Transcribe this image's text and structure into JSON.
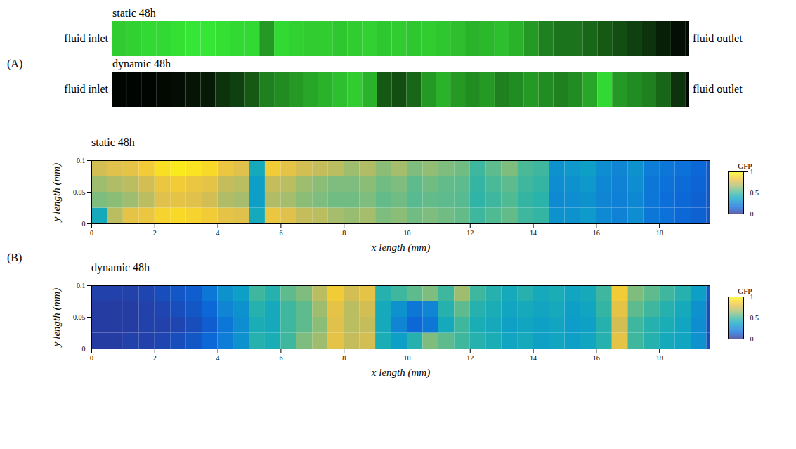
{
  "panels": {
    "A": "(A)",
    "B": "(B)"
  },
  "images": [
    {
      "title": "static 48h",
      "inlet": "fluid inlet",
      "outlet": "fluid outlet",
      "intensity_range": [
        0,
        1
      ],
      "x_edges": [
        0,
        0.5,
        1,
        1.5,
        2,
        2.5,
        3,
        3.5,
        4,
        4.5,
        5,
        5.5,
        6,
        6.5,
        7,
        7.5,
        8,
        8.5,
        9,
        9.5,
        10,
        10.5,
        11,
        11.5,
        12,
        12.5,
        13,
        13.5,
        14,
        14.5,
        15,
        15.5,
        16,
        16.5,
        17,
        17.5,
        18,
        18.5,
        19,
        19.5,
        19.6
      ],
      "intensity": [
        0.8,
        0.82,
        0.85,
        0.85,
        0.88,
        0.9,
        0.9,
        0.88,
        0.85,
        0.85,
        0.6,
        0.85,
        0.82,
        0.8,
        0.8,
        0.78,
        0.8,
        0.82,
        0.78,
        0.8,
        0.78,
        0.8,
        0.78,
        0.75,
        0.7,
        0.72,
        0.75,
        0.7,
        0.6,
        0.5,
        0.45,
        0.45,
        0.4,
        0.35,
        0.3,
        0.25,
        0.2,
        0.12,
        0.06,
        0.03
      ]
    },
    {
      "title": "dynamic 48h",
      "inlet": "fluid inlet",
      "outlet": "fluid outlet",
      "intensity_range": [
        0,
        1
      ],
      "x_edges": [
        0,
        0.5,
        1,
        1.5,
        2,
        2.5,
        3,
        3.5,
        4,
        4.5,
        5,
        5.5,
        6,
        6.5,
        7,
        7.5,
        8,
        8.5,
        9,
        9.5,
        10,
        10.5,
        11,
        11.5,
        12,
        12.5,
        13,
        13.5,
        14,
        14.5,
        15,
        15.5,
        16,
        16.5,
        17,
        17.5,
        18,
        18.5,
        19,
        19.5,
        19.6
      ],
      "intensity": [
        0.02,
        0.02,
        0.02,
        0.03,
        0.05,
        0.08,
        0.1,
        0.2,
        0.25,
        0.35,
        0.5,
        0.55,
        0.6,
        0.65,
        0.7,
        0.75,
        0.8,
        0.7,
        0.35,
        0.3,
        0.4,
        0.6,
        0.7,
        0.6,
        0.55,
        0.6,
        0.5,
        0.55,
        0.6,
        0.55,
        0.5,
        0.55,
        0.65,
        0.85,
        0.6,
        0.55,
        0.5,
        0.4,
        0.2,
        0.03
      ]
    }
  ],
  "chart_data": [
    {
      "type": "heatmap",
      "title": "static 48h",
      "x_label": "x length (mm)",
      "y_label": "y length (mm)",
      "xlim": [
        0,
        19.6
      ],
      "xticks": [
        0,
        2,
        4,
        6,
        8,
        10,
        12,
        14,
        16,
        18
      ],
      "ylim": [
        0,
        0.1
      ],
      "yticks": [
        0,
        0.05,
        0.1
      ],
      "x_edges": [
        0,
        0.5,
        1,
        1.5,
        2,
        2.5,
        3,
        3.5,
        4,
        4.5,
        5,
        5.5,
        6,
        6.5,
        7,
        7.5,
        8,
        8.5,
        9,
        9.5,
        10,
        10.5,
        11,
        11.5,
        12,
        12.5,
        13,
        13.5,
        14,
        14.5,
        15,
        15.5,
        16,
        16.5,
        17,
        17.5,
        18,
        18.5,
        19,
        19.5,
        19.6
      ],
      "y_edges": [
        0,
        0.025,
        0.05,
        0.075,
        0.1
      ],
      "cells": [
        [
          0.4,
          0.7,
          0.8,
          0.82,
          0.88,
          0.9,
          0.88,
          0.85,
          0.8,
          0.78,
          0.4,
          0.82,
          0.78,
          0.72,
          0.7,
          0.66,
          0.64,
          0.66,
          0.6,
          0.62,
          0.58,
          0.6,
          0.58,
          0.56,
          0.5,
          0.53,
          0.56,
          0.5,
          0.48,
          0.3,
          0.3,
          0.33,
          0.27,
          0.24,
          0.28,
          0.2,
          0.18,
          0.15,
          0.13,
          0.1
        ],
        [
          0.6,
          0.62,
          0.65,
          0.7,
          0.78,
          0.8,
          0.78,
          0.75,
          0.68,
          0.66,
          0.35,
          0.68,
          0.66,
          0.62,
          0.6,
          0.58,
          0.58,
          0.6,
          0.56,
          0.58,
          0.54,
          0.56,
          0.55,
          0.54,
          0.47,
          0.5,
          0.53,
          0.48,
          0.46,
          0.27,
          0.28,
          0.3,
          0.25,
          0.23,
          0.26,
          0.2,
          0.17,
          0.15,
          0.13,
          0.1
        ],
        [
          0.65,
          0.68,
          0.7,
          0.75,
          0.82,
          0.85,
          0.82,
          0.8,
          0.72,
          0.7,
          0.35,
          0.72,
          0.7,
          0.65,
          0.62,
          0.6,
          0.6,
          0.62,
          0.58,
          0.6,
          0.55,
          0.58,
          0.56,
          0.55,
          0.48,
          0.52,
          0.55,
          0.5,
          0.48,
          0.28,
          0.3,
          0.32,
          0.26,
          0.24,
          0.28,
          0.2,
          0.18,
          0.16,
          0.14,
          0.1
        ],
        [
          0.75,
          0.78,
          0.8,
          0.85,
          0.92,
          0.95,
          0.93,
          0.9,
          0.82,
          0.78,
          0.4,
          0.85,
          0.8,
          0.75,
          0.72,
          0.7,
          0.65,
          0.68,
          0.62,
          0.66,
          0.6,
          0.63,
          0.6,
          0.58,
          0.5,
          0.55,
          0.6,
          0.52,
          0.5,
          0.3,
          0.32,
          0.35,
          0.28,
          0.25,
          0.3,
          0.22,
          0.2,
          0.18,
          0.15,
          0.1
        ]
      ],
      "colorbar": {
        "label": "GFP",
        "range": [
          0,
          1
        ],
        "ticks": [
          0,
          0.5,
          1
        ]
      }
    },
    {
      "type": "heatmap",
      "title": "dynamic 48h",
      "x_label": "x length (mm)",
      "y_label": "y length (mm)",
      "xlim": [
        0,
        19.6
      ],
      "xticks": [
        0,
        2,
        4,
        6,
        8,
        10,
        12,
        14,
        16,
        18
      ],
      "ylim": [
        0,
        0.1
      ],
      "yticks": [
        0,
        0.05,
        0.1
      ],
      "x_edges": [
        0,
        0.5,
        1,
        1.5,
        2,
        2.5,
        3,
        3.5,
        4,
        4.5,
        5,
        5.5,
        6,
        6.5,
        7,
        7.5,
        8,
        8.5,
        9,
        9.5,
        10,
        10.5,
        11,
        11.5,
        12,
        12.5,
        13,
        13.5,
        14,
        14.5,
        15,
        15.5,
        16,
        16.5,
        17,
        17.5,
        18,
        18.5,
        19,
        19.5,
        19.6
      ],
      "y_edges": [
        0,
        0.025,
        0.05,
        0.075,
        0.1
      ],
      "cells": [
        [
          0.04,
          0.04,
          0.05,
          0.05,
          0.06,
          0.08,
          0.1,
          0.15,
          0.22,
          0.3,
          0.45,
          0.42,
          0.5,
          0.6,
          0.65,
          0.8,
          0.72,
          0.75,
          0.42,
          0.35,
          0.45,
          0.6,
          0.55,
          0.5,
          0.45,
          0.42,
          0.38,
          0.4,
          0.36,
          0.38,
          0.35,
          0.38,
          0.45,
          0.8,
          0.5,
          0.45,
          0.4,
          0.38,
          0.3,
          0.08
        ],
        [
          0.04,
          0.04,
          0.04,
          0.05,
          0.05,
          0.06,
          0.08,
          0.12,
          0.2,
          0.28,
          0.42,
          0.4,
          0.5,
          0.55,
          0.62,
          0.78,
          0.7,
          0.72,
          0.4,
          0.25,
          0.15,
          0.2,
          0.4,
          0.5,
          0.42,
          0.4,
          0.36,
          0.38,
          0.36,
          0.38,
          0.34,
          0.36,
          0.45,
          0.75,
          0.5,
          0.45,
          0.42,
          0.38,
          0.28,
          0.08
        ],
        [
          0.04,
          0.04,
          0.04,
          0.05,
          0.06,
          0.08,
          0.1,
          0.15,
          0.25,
          0.3,
          0.45,
          0.4,
          0.5,
          0.55,
          0.65,
          0.8,
          0.7,
          0.75,
          0.4,
          0.3,
          0.2,
          0.25,
          0.45,
          0.55,
          0.45,
          0.42,
          0.38,
          0.4,
          0.38,
          0.4,
          0.35,
          0.38,
          0.48,
          0.8,
          0.55,
          0.5,
          0.45,
          0.4,
          0.3,
          0.08
        ],
        [
          0.05,
          0.05,
          0.05,
          0.06,
          0.08,
          0.1,
          0.12,
          0.2,
          0.3,
          0.35,
          0.5,
          0.45,
          0.55,
          0.6,
          0.7,
          0.85,
          0.75,
          0.8,
          0.45,
          0.5,
          0.55,
          0.6,
          0.5,
          0.65,
          0.5,
          0.45,
          0.4,
          0.45,
          0.4,
          0.42,
          0.38,
          0.4,
          0.5,
          0.85,
          0.6,
          0.55,
          0.5,
          0.45,
          0.35,
          0.1
        ]
      ],
      "colorbar": {
        "label": "GFP",
        "range": [
          0,
          1
        ],
        "ticks": [
          0,
          0.5,
          1
        ]
      }
    }
  ]
}
